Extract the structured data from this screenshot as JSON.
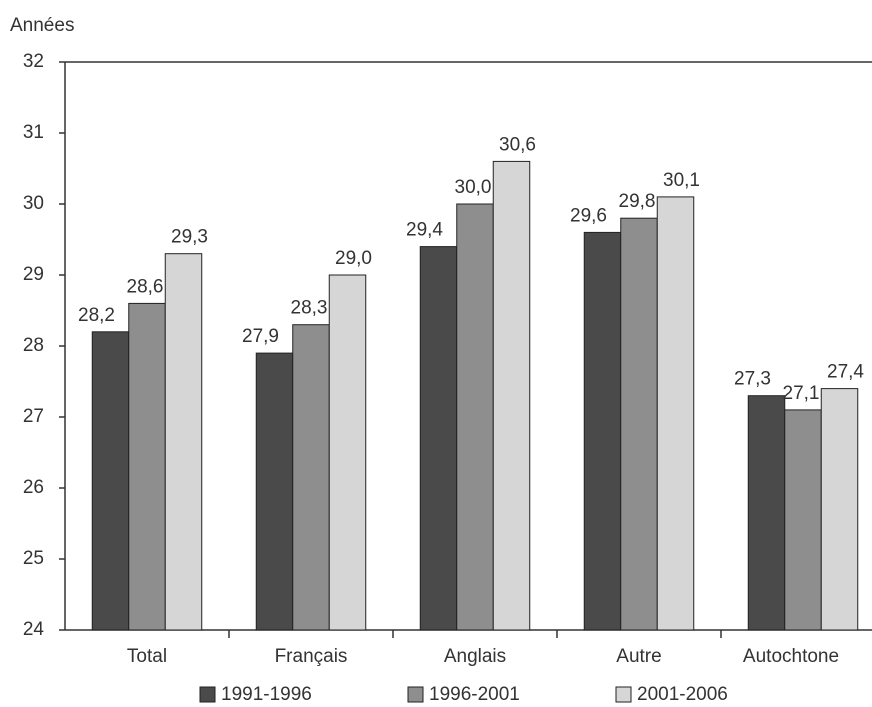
{
  "chart_data": {
    "type": "bar",
    "y_label": "Années",
    "categories": [
      "Total",
      "Français",
      "Anglais",
      "Autre",
      "Autochtone"
    ],
    "series": [
      {
        "name": "1991-1996",
        "color": "#4a4a4a",
        "values": [
          28.2,
          27.9,
          29.4,
          29.6,
          27.3
        ],
        "value_labels": [
          "28,2",
          "27,9",
          "29,4",
          "29,6",
          "27,3"
        ]
      },
      {
        "name": "1996-2001",
        "color": "#8e8e8e",
        "values": [
          28.6,
          28.3,
          30.0,
          29.8,
          27.1
        ],
        "value_labels": [
          "28,6",
          "28,3",
          "30,0",
          "29,8",
          "27,1"
        ]
      },
      {
        "name": "2001-2006",
        "color": "#d6d6d6",
        "values": [
          29.3,
          29.0,
          30.6,
          30.1,
          27.4
        ],
        "value_labels": [
          "29,3",
          "29,0",
          "30,6",
          "30,1",
          "27,4"
        ]
      }
    ],
    "ylim": [
      24,
      32
    ],
    "yticks": [
      24,
      25,
      26,
      27,
      28,
      29,
      30,
      31,
      32
    ],
    "legend": "bottom"
  }
}
